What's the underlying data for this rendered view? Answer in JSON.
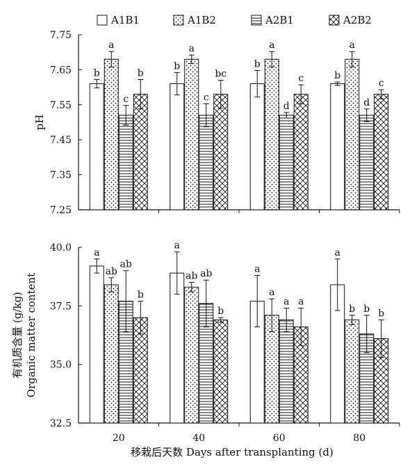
{
  "chart_data": [
    {
      "type": "bar",
      "panel": "top",
      "ylabel": "pH",
      "ylim": [
        7.25,
        7.75
      ],
      "yticks": [
        "7.25",
        "7.35",
        "7.45",
        "7.55",
        "7.65",
        "7.75"
      ],
      "categories": [
        "20",
        "40",
        "60",
        "80"
      ],
      "series": [
        {
          "name": "A1B1",
          "pattern": "blank",
          "values": [
            7.61,
            7.61,
            7.61,
            7.61
          ],
          "errors": [
            0.012,
            0.032,
            0.038,
            0.005
          ],
          "labels": [
            "b",
            "b",
            "b",
            "b"
          ]
        },
        {
          "name": "A1B2",
          "pattern": "dots",
          "values": [
            7.68,
            7.68,
            7.68,
            7.68
          ],
          "errors": [
            0.022,
            0.012,
            0.022,
            0.022
          ],
          "labels": [
            "a",
            "a",
            "a",
            "a"
          ]
        },
        {
          "name": "A2B1",
          "pattern": "hlines",
          "values": [
            7.52,
            7.52,
            7.52,
            7.52
          ],
          "errors": [
            0.028,
            0.033,
            0.008,
            0.018
          ],
          "labels": [
            "c",
            "c",
            "d",
            "d"
          ]
        },
        {
          "name": "A2B2",
          "pattern": "cross",
          "values": [
            7.58,
            7.58,
            7.58,
            7.58
          ],
          "errors": [
            0.042,
            0.04,
            0.027,
            0.013
          ],
          "labels": [
            "b",
            "bc",
            "c",
            "c"
          ]
        }
      ]
    },
    {
      "type": "bar",
      "panel": "bottom",
      "ylabel": "有机质含量 (g/kg)",
      "ylabel2": "Organic matter content",
      "ylim": [
        32.5,
        40.0
      ],
      "yticks": [
        "32.5",
        "35.0",
        "37.5",
        "40.0"
      ],
      "xlabel": "移栽后天数 Days after transplanting (d)",
      "categories": [
        "20",
        "40",
        "60",
        "80"
      ],
      "series": [
        {
          "name": "A1B1",
          "pattern": "blank",
          "values": [
            39.2,
            38.9,
            37.7,
            38.4
          ],
          "errors": [
            0.3,
            0.9,
            1.1,
            1.1
          ],
          "labels": [
            "a",
            "a",
            "a",
            "a"
          ]
        },
        {
          "name": "A1B2",
          "pattern": "dots",
          "values": [
            38.4,
            38.3,
            37.1,
            36.9
          ],
          "errors": [
            0.3,
            0.2,
            0.7,
            0.2
          ],
          "labels": [
            "ab",
            "ab",
            "a",
            "b"
          ]
        },
        {
          "name": "A2B1",
          "pattern": "hlines",
          "values": [
            37.7,
            37.6,
            36.9,
            36.3
          ],
          "errors": [
            1.3,
            1.0,
            0.5,
            0.8
          ],
          "labels": [
            "ab",
            "ab",
            "a",
            "b"
          ]
        },
        {
          "name": "A2B2",
          "pattern": "cross",
          "values": [
            37.0,
            36.9,
            36.6,
            36.1
          ],
          "errors": [
            0.7,
            0.1,
            0.8,
            0.8
          ],
          "labels": [
            "b",
            "b",
            "a",
            "b"
          ]
        }
      ]
    }
  ],
  "legend": {
    "items": [
      {
        "name": "A1B1",
        "pattern": "blank"
      },
      {
        "name": "A1B2",
        "pattern": "dots"
      },
      {
        "name": "A2B1",
        "pattern": "hlines"
      },
      {
        "name": "A2B2",
        "pattern": "cross"
      }
    ]
  },
  "colors": {
    "ink": "#111111",
    "background": "#ffffff"
  }
}
